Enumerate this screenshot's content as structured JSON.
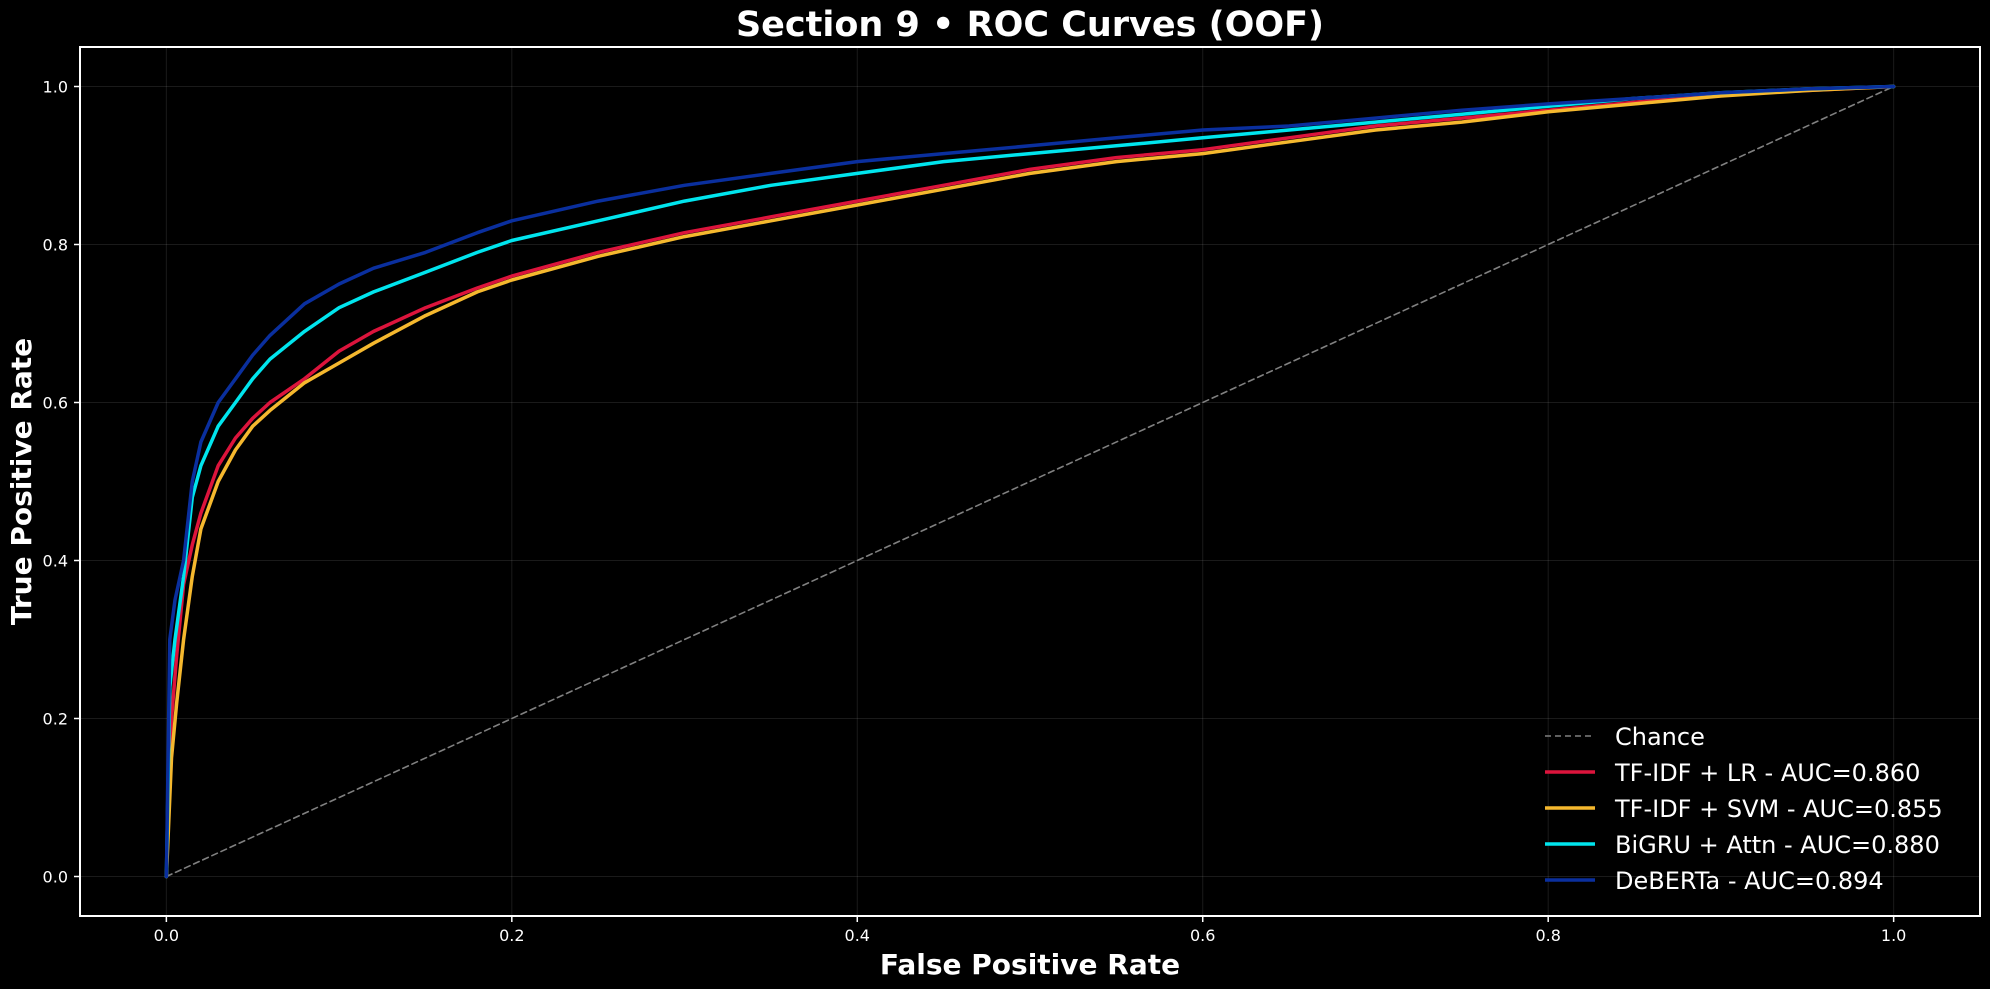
{
  "chart_data": {
    "type": "line",
    "title": "Section 9 • ROC Curves (OOF)",
    "xlabel": "False Positive Rate",
    "ylabel": "True Positive Rate",
    "xlim": [
      -0.05,
      1.05
    ],
    "ylim": [
      -0.05,
      1.05
    ],
    "xticks": [
      0.0,
      0.2,
      0.4,
      0.6,
      0.8,
      1.0
    ],
    "yticks": [
      0.0,
      0.2,
      0.4,
      0.6,
      0.8,
      1.0
    ],
    "xtick_labels": [
      "0.0",
      "0.2",
      "0.4",
      "0.6",
      "0.8",
      "1.0"
    ],
    "ytick_labels": [
      "0.0",
      "0.2",
      "0.4",
      "0.6",
      "0.8",
      "1.0"
    ],
    "grid": true,
    "legend_position": "lower-right",
    "background": "#000000",
    "series": [
      {
        "name": "Chance",
        "color": "#808080",
        "dashed": true,
        "x": [
          0.0,
          1.0
        ],
        "y": [
          0.0,
          1.0
        ]
      },
      {
        "name": "TF-IDF + LR - AUC=0.860",
        "color": "#dc143c",
        "dashed": false,
        "x": [
          0.0,
          0.003,
          0.006,
          0.01,
          0.015,
          0.02,
          0.03,
          0.04,
          0.05,
          0.06,
          0.08,
          0.1,
          0.12,
          0.15,
          0.18,
          0.2,
          0.25,
          0.3,
          0.35,
          0.4,
          0.45,
          0.5,
          0.55,
          0.6,
          0.65,
          0.7,
          0.75,
          0.8,
          0.85,
          0.9,
          0.95,
          1.0
        ],
        "y": [
          0.0,
          0.2,
          0.28,
          0.37,
          0.42,
          0.46,
          0.52,
          0.555,
          0.58,
          0.6,
          0.63,
          0.665,
          0.69,
          0.72,
          0.745,
          0.76,
          0.79,
          0.815,
          0.835,
          0.855,
          0.875,
          0.895,
          0.91,
          0.92,
          0.935,
          0.95,
          0.96,
          0.97,
          0.98,
          0.99,
          0.995,
          1.0
        ]
      },
      {
        "name": "TF-IDF + SVM - AUC=0.855",
        "color": "#f5b82e",
        "dashed": false,
        "x": [
          0.0,
          0.003,
          0.006,
          0.01,
          0.015,
          0.02,
          0.03,
          0.04,
          0.05,
          0.06,
          0.08,
          0.1,
          0.12,
          0.15,
          0.18,
          0.2,
          0.25,
          0.3,
          0.35,
          0.4,
          0.45,
          0.5,
          0.55,
          0.6,
          0.65,
          0.7,
          0.75,
          0.8,
          0.85,
          0.9,
          0.95,
          1.0
        ],
        "y": [
          0.0,
          0.15,
          0.22,
          0.3,
          0.38,
          0.44,
          0.5,
          0.54,
          0.57,
          0.59,
          0.625,
          0.65,
          0.675,
          0.71,
          0.74,
          0.755,
          0.785,
          0.81,
          0.83,
          0.85,
          0.87,
          0.89,
          0.905,
          0.915,
          0.93,
          0.945,
          0.955,
          0.968,
          0.978,
          0.988,
          0.995,
          1.0
        ]
      },
      {
        "name": "BiGRU + Attn - AUC=0.880",
        "color": "#00e5ee",
        "dashed": false,
        "x": [
          0.0,
          0.002,
          0.005,
          0.01,
          0.015,
          0.02,
          0.03,
          0.04,
          0.05,
          0.06,
          0.08,
          0.1,
          0.12,
          0.15,
          0.18,
          0.2,
          0.25,
          0.3,
          0.35,
          0.4,
          0.45,
          0.5,
          0.55,
          0.6,
          0.65,
          0.7,
          0.75,
          0.8,
          0.85,
          0.9,
          0.95,
          1.0
        ],
        "y": [
          0.0,
          0.24,
          0.3,
          0.38,
          0.48,
          0.52,
          0.57,
          0.6,
          0.63,
          0.655,
          0.69,
          0.72,
          0.74,
          0.765,
          0.79,
          0.805,
          0.83,
          0.855,
          0.875,
          0.89,
          0.905,
          0.915,
          0.925,
          0.935,
          0.945,
          0.955,
          0.965,
          0.975,
          0.985,
          0.992,
          0.997,
          1.0
        ]
      },
      {
        "name": "DeBERTa - AUC=0.894",
        "color": "#0a2f9e",
        "dashed": false,
        "x": [
          0.0,
          0.002,
          0.005,
          0.01,
          0.015,
          0.02,
          0.03,
          0.04,
          0.05,
          0.06,
          0.08,
          0.1,
          0.12,
          0.15,
          0.18,
          0.2,
          0.25,
          0.3,
          0.35,
          0.4,
          0.45,
          0.5,
          0.55,
          0.6,
          0.65,
          0.7,
          0.75,
          0.8,
          0.85,
          0.9,
          0.95,
          1.0
        ],
        "y": [
          0.0,
          0.3,
          0.35,
          0.4,
          0.5,
          0.55,
          0.6,
          0.63,
          0.66,
          0.685,
          0.725,
          0.75,
          0.77,
          0.79,
          0.815,
          0.83,
          0.855,
          0.875,
          0.89,
          0.905,
          0.915,
          0.925,
          0.935,
          0.945,
          0.95,
          0.96,
          0.97,
          0.978,
          0.985,
          0.992,
          0.997,
          1.0
        ]
      }
    ]
  }
}
